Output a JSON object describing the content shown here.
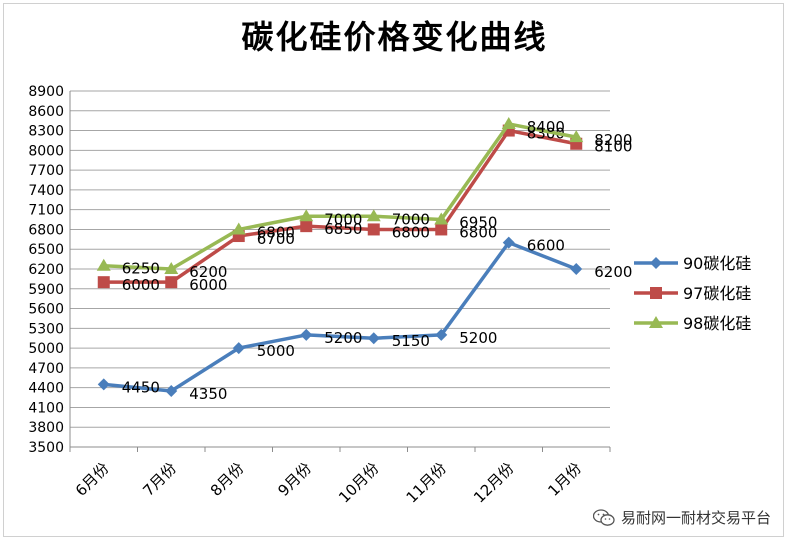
{
  "chart_data": {
    "type": "line",
    "title": "碳化硅价格变化曲线",
    "categories": [
      "6月份",
      "7月份",
      "8月份",
      "9月份",
      "10月份",
      "11月份",
      "12月份",
      "1月份"
    ],
    "ylim": [
      3500,
      8900
    ],
    "ytick_step": 300,
    "grid": true,
    "legend_placement": "right",
    "series": [
      {
        "name": "90碳化硅",
        "color": "#4a7ebb",
        "marker": "diamond",
        "values": [
          4450,
          4350,
          5000,
          5200,
          5150,
          5200,
          6600,
          6200
        ],
        "labels": [
          "4450",
          "4350",
          "5000",
          "5200",
          "5150",
          "5200",
          "6600",
          "6200"
        ]
      },
      {
        "name": "97碳化硅",
        "color": "#be4b48",
        "marker": "square",
        "values": [
          6000,
          6000,
          6700,
          6850,
          6800,
          6800,
          8300,
          8100
        ],
        "labels": [
          "6000",
          "6000",
          "6700",
          "6850",
          "6800",
          "6800",
          "8300",
          "8100"
        ]
      },
      {
        "name": "98碳化硅",
        "color": "#98b954",
        "marker": "triangle",
        "values": [
          6250,
          6200,
          6800,
          7000,
          7000,
          6950,
          8400,
          8200
        ],
        "labels": [
          "6250",
          "6200",
          "6800",
          "7000",
          "7000",
          "6950",
          "8400",
          "8200"
        ]
      }
    ]
  },
  "watermark": {
    "text": "易耐网一耐材交易平台",
    "icon": "wechat-icon"
  }
}
